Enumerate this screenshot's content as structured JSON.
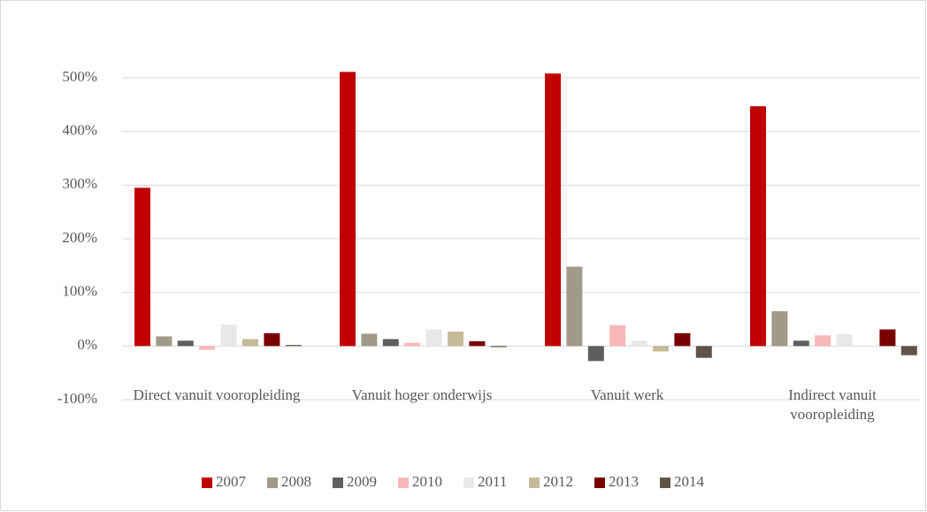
{
  "chart_data": {
    "type": "bar",
    "categories": [
      "Direct vanuit vooropleiding",
      "Vanuit hoger onderwijs",
      "Vanuit werk",
      "Indirect vanuit vooropleiding"
    ],
    "series": [
      {
        "name": "2007",
        "color": "#c00000",
        "values": [
          295,
          511,
          508,
          447
        ]
      },
      {
        "name": "2008",
        "color": "#a09a88",
        "values": [
          18,
          23,
          148,
          65
        ]
      },
      {
        "name": "2009",
        "color": "#5f5f5f",
        "values": [
          10,
          13,
          -28,
          10
        ]
      },
      {
        "name": "2010",
        "color": "#f9b8b8",
        "values": [
          -7,
          6,
          39,
          20
        ]
      },
      {
        "name": "2011",
        "color": "#e8e8e8",
        "values": [
          40,
          31,
          10,
          22
        ]
      },
      {
        "name": "2012",
        "color": "#c5bb98",
        "values": [
          13,
          27,
          -10,
          0
        ]
      },
      {
        "name": "2013",
        "color": "#7a0000",
        "values": [
          24,
          9,
          24,
          31
        ]
      },
      {
        "name": "2014",
        "color": "#5e5548",
        "values": [
          2,
          -2,
          -22,
          -17
        ]
      }
    ],
    "ylim": [
      -100,
      500
    ],
    "yticks": [
      {
        "value": -100,
        "label": "-100%"
      },
      {
        "value": 0,
        "label": "0%"
      },
      {
        "value": 100,
        "label": "100%"
      },
      {
        "value": 200,
        "label": "200%"
      },
      {
        "value": 300,
        "label": "300%"
      },
      {
        "value": 400,
        "label": "400%"
      },
      {
        "value": 500,
        "label": "500%"
      }
    ],
    "grid": true,
    "legend": "bottom"
  }
}
